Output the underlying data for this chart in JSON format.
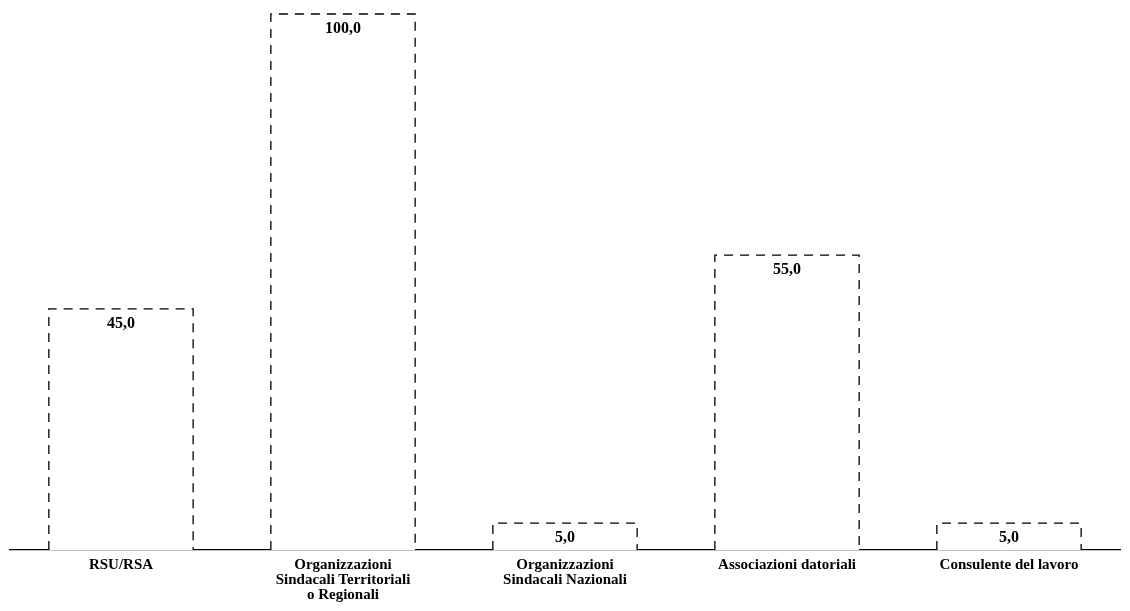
{
  "chart_data": {
    "type": "bar",
    "categories": [
      "RSU/RSA",
      "Organizzazioni\nSindacali Territoriali\no Regionali",
      "Organizzazioni\nSindacali Nazionali",
      "Associazioni datoriali",
      "Consulente del lavoro"
    ],
    "values": [
      45,
      100,
      5,
      55,
      5
    ],
    "value_labels": [
      "45,0",
      "100,0",
      "5,0",
      "55,0",
      "5,0"
    ],
    "color": "#ffffff",
    "line_style": "dashed",
    "grid": false,
    "legend": false
  }
}
